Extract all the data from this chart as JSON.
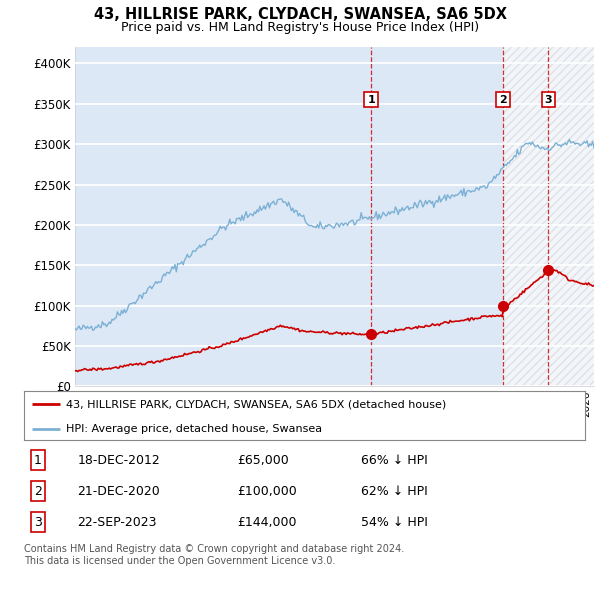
{
  "title": "43, HILLRISE PARK, CLYDACH, SWANSEA, SA6 5DX",
  "subtitle": "Price paid vs. HM Land Registry's House Price Index (HPI)",
  "ylim": [
    0,
    420000
  ],
  "yticks": [
    0,
    50000,
    100000,
    150000,
    200000,
    250000,
    300000,
    350000,
    400000
  ],
  "ytick_labels": [
    "£0",
    "£50K",
    "£100K",
    "£150K",
    "£200K",
    "£250K",
    "£300K",
    "£350K",
    "£400K"
  ],
  "plot_bg_color": "#dce8f5",
  "grid_color": "#ffffff",
  "hpi_color": "#7db0d5",
  "price_color": "#cc0000",
  "sale_dates": [
    2012.97,
    2020.97,
    2023.73
  ],
  "sale_prices": [
    65000,
    100000,
    144000
  ],
  "sale_labels": [
    "1",
    "2",
    "3"
  ],
  "sale_info": [
    {
      "label": "1",
      "date": "18-DEC-2012",
      "price": "£65,000",
      "pct": "66% ↓ HPI"
    },
    {
      "label": "2",
      "date": "21-DEC-2020",
      "price": "£100,000",
      "pct": "62% ↓ HPI"
    },
    {
      "label": "3",
      "date": "22-SEP-2023",
      "price": "£144,000",
      "pct": "54% ↓ HPI"
    }
  ],
  "legend_line1": "43, HILLRISE PARK, CLYDACH, SWANSEA, SA6 5DX (detached house)",
  "legend_line2": "HPI: Average price, detached house, Swansea",
  "footnote": "Contains HM Land Registry data © Crown copyright and database right 2024.\nThis data is licensed under the Open Government Licence v3.0.",
  "xmin": 1995,
  "xmax": 2026.5
}
